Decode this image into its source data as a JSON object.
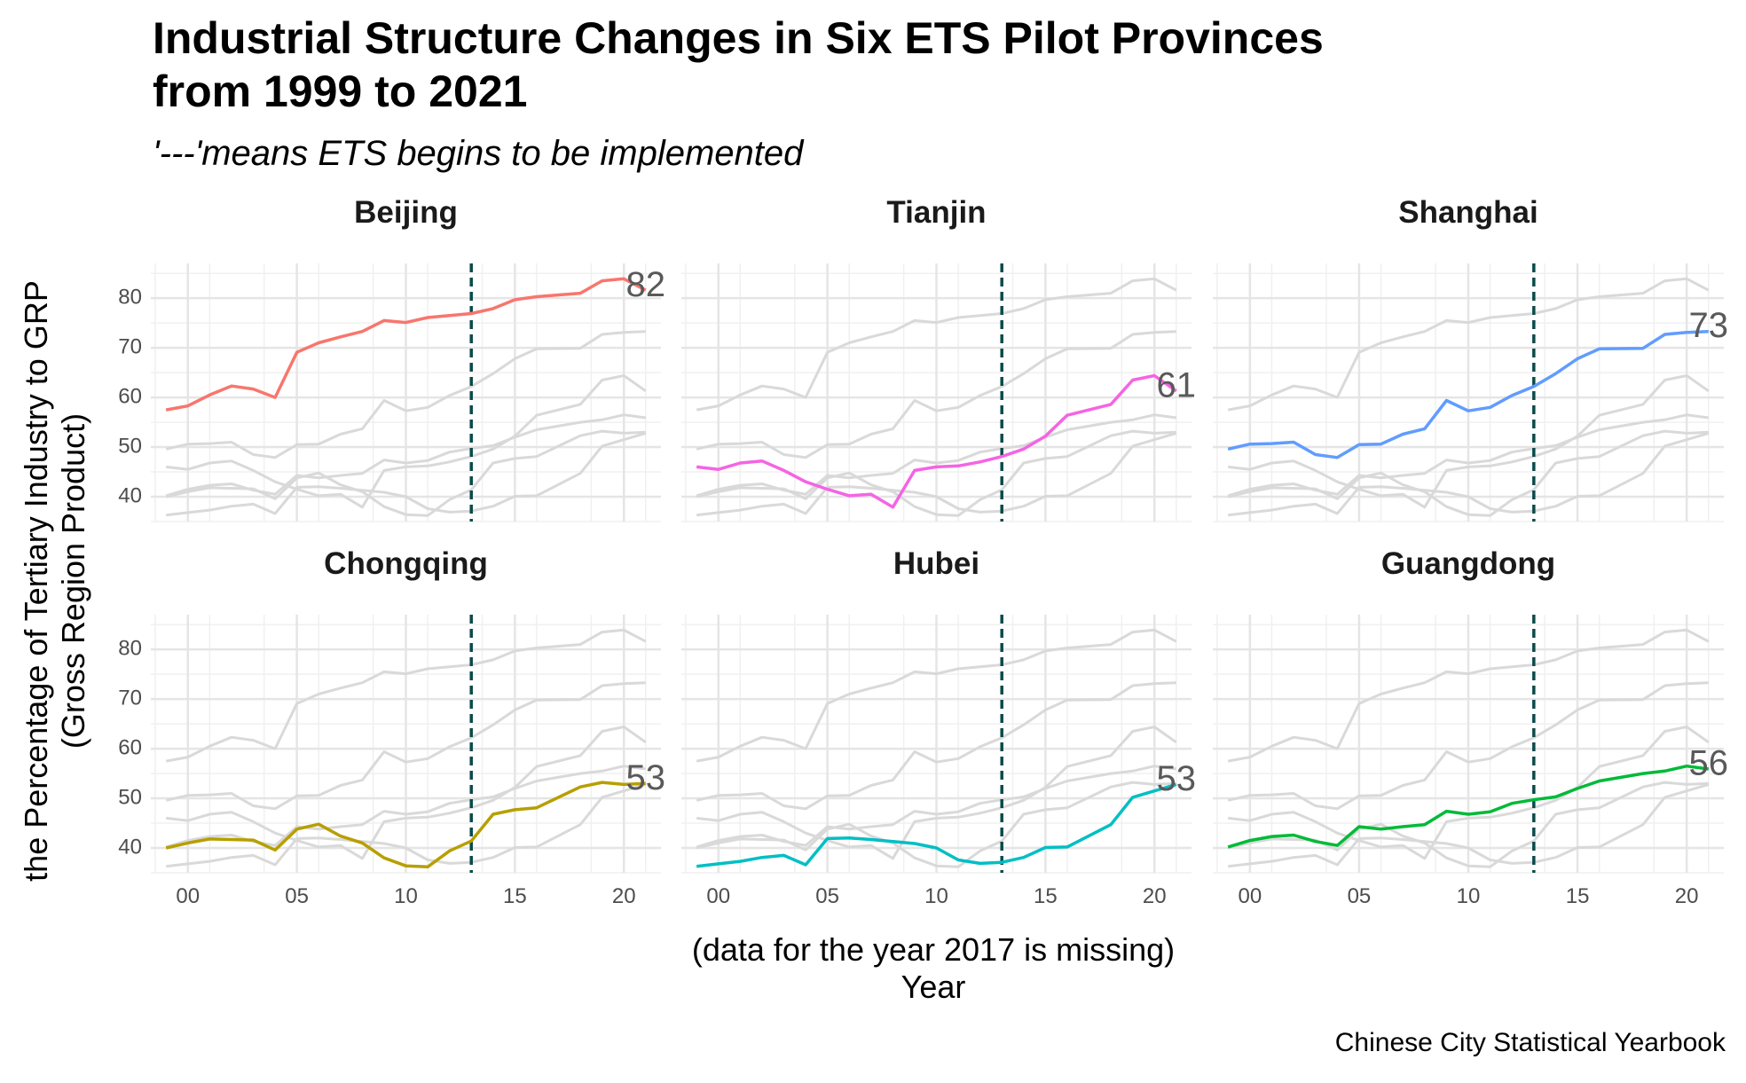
{
  "chart_data": {
    "type": "line",
    "title_lines": [
      "Industrial Structure Changes in Six ETS Pilot Provinces",
      "from 1999 to 2021"
    ],
    "subtitle": "'---'means ETS begins to be implemented",
    "xlabel_lines": [
      "(data for the year 2017 is missing)",
      "Year"
    ],
    "ylabel_lines": [
      "the Percentage of Tertiary Industry to GRP",
      "(Gross Region Product)"
    ],
    "caption": "Chinese City Statistical Yearbook",
    "x_tick_values": [
      2000,
      2005,
      2010,
      2015,
      2020
    ],
    "x_tick_labels": [
      "00",
      "05",
      "10",
      "15",
      "20"
    ],
    "y_tick_values": [
      40,
      50,
      60,
      70,
      80
    ],
    "y_tick_labels": [
      "40",
      "50",
      "60",
      "70",
      "80"
    ],
    "xlim": [
      1998.3,
      2021.7
    ],
    "ylim": [
      35,
      87
    ],
    "ets_start_year": 2013,
    "background_line_color": "#d9d9d9",
    "ets_line_color": "#0b4a4a",
    "grid": true,
    "legend": "none",
    "years": [
      1999,
      2000,
      2001,
      2002,
      2003,
      2004,
      2005,
      2006,
      2007,
      2008,
      2009,
      2010,
      2011,
      2012,
      2013,
      2014,
      2015,
      2016,
      2018,
      2019,
      2020,
      2021
    ],
    "series": [
      {
        "name": "Beijing",
        "color": "#f8766d",
        "end_label": "82",
        "values": [
          57.5,
          58.3,
          60.5,
          62.3,
          61.7,
          60.0,
          69.1,
          71.0,
          72.2,
          73.3,
          75.5,
          75.1,
          76.1,
          76.5,
          76.9,
          77.9,
          79.7,
          80.3,
          81.0,
          83.5,
          83.9,
          81.6
        ]
      },
      {
        "name": "Tianjin",
        "color": "#f564e3",
        "end_label": "61",
        "values": [
          46.0,
          45.5,
          46.8,
          47.2,
          45.3,
          43.0,
          41.5,
          40.2,
          40.5,
          37.9,
          45.3,
          46.0,
          46.2,
          47.0,
          48.1,
          49.6,
          52.2,
          56.4,
          58.6,
          63.5,
          64.4,
          61.3
        ]
      },
      {
        "name": "Shanghai",
        "color": "#619cff",
        "end_label": "73",
        "values": [
          49.6,
          50.6,
          50.7,
          51.0,
          48.5,
          47.9,
          50.5,
          50.6,
          52.6,
          53.7,
          59.4,
          57.3,
          58.0,
          60.4,
          62.2,
          64.8,
          67.8,
          69.8,
          69.9,
          72.7,
          73.1,
          73.3
        ]
      },
      {
        "name": "Chongqing",
        "color": "#b79f00",
        "end_label": "53",
        "values": [
          40.0,
          41.0,
          41.8,
          41.7,
          41.6,
          39.6,
          43.8,
          44.8,
          42.4,
          41.0,
          38.0,
          36.4,
          36.2,
          39.4,
          41.4,
          46.8,
          47.7,
          48.1,
          52.3,
          53.2,
          52.8,
          53.0
        ]
      },
      {
        "name": "Hubei",
        "color": "#00bfc4",
        "end_label": "53",
        "values": [
          36.3,
          36.8,
          37.3,
          38.1,
          38.5,
          36.6,
          41.9,
          42.0,
          41.7,
          41.3,
          40.9,
          40.0,
          37.6,
          36.9,
          37.1,
          38.1,
          40.1,
          40.2,
          44.7,
          50.2,
          51.5,
          52.8
        ]
      },
      {
        "name": "Guangdong",
        "color": "#00ba38",
        "end_label": "56",
        "values": [
          40.2,
          41.5,
          42.3,
          42.6,
          41.3,
          40.5,
          44.3,
          43.8,
          44.3,
          44.7,
          47.4,
          46.8,
          47.3,
          49.0,
          49.7,
          50.3,
          52.0,
          53.5,
          55.0,
          55.5,
          56.5,
          55.9
        ]
      }
    ]
  }
}
